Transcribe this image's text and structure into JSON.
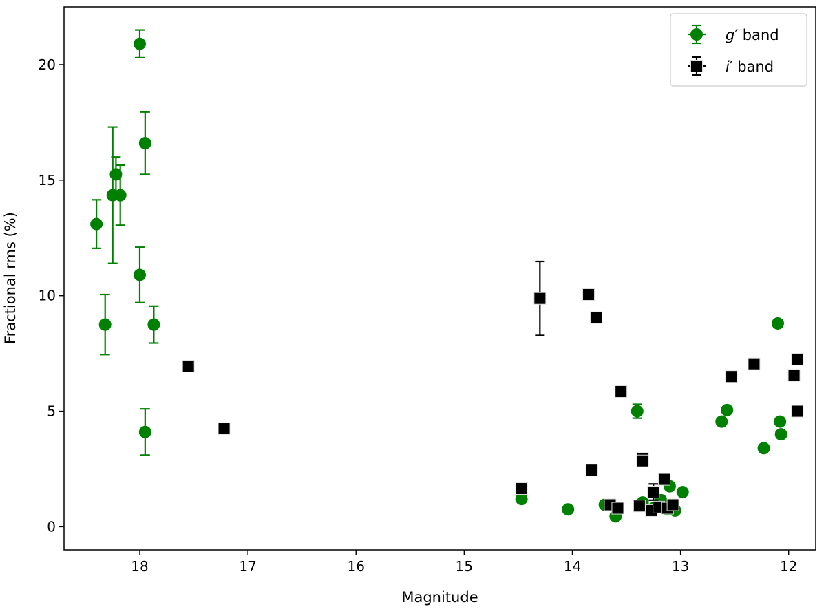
{
  "chart_data": {
    "type": "scatter",
    "title": "",
    "xlabel": "Magnitude",
    "ylabel": "Fractional rms (%)",
    "x_inverted": true,
    "xlim": [
      18.7,
      11.75
    ],
    "ylim": [
      -1.0,
      22.5
    ],
    "xticks": [
      18,
      17,
      16,
      15,
      14,
      13,
      12
    ],
    "yticks": [
      0,
      5,
      10,
      15,
      20
    ],
    "grid": false,
    "legend_position": "top-right",
    "legend": [
      {
        "prefix": "g",
        "suffix": "′ band"
      },
      {
        "prefix": "i",
        "suffix": "′ band"
      }
    ],
    "series": [
      {
        "name": "g′ band",
        "marker": "circle",
        "color": "#008000",
        "points": [
          {
            "x": 18.4,
            "y": 13.1,
            "yerr": 1.05
          },
          {
            "x": 18.32,
            "y": 8.75,
            "yerr": 1.3
          },
          {
            "x": 18.25,
            "y": 14.35,
            "yerr": 2.95
          },
          {
            "x": 18.22,
            "y": 15.25,
            "yerr": 0.75
          },
          {
            "x": 18.18,
            "y": 14.35,
            "yerr": 1.3
          },
          {
            "x": 18.0,
            "y": 20.9,
            "yerr": 0.6
          },
          {
            "x": 18.0,
            "y": 10.9,
            "yerr": 1.2
          },
          {
            "x": 17.95,
            "y": 16.6,
            "yerr": 1.35
          },
          {
            "x": 17.95,
            "y": 4.1,
            "yerr": 1.0
          },
          {
            "x": 17.87,
            "y": 8.75,
            "yerr": 0.8
          },
          {
            "x": 14.47,
            "y": 1.2,
            "yerr": 0
          },
          {
            "x": 14.04,
            "y": 0.75,
            "yerr": 0
          },
          {
            "x": 13.7,
            "y": 0.95,
            "yerr": 0
          },
          {
            "x": 13.6,
            "y": 0.45,
            "yerr": 0
          },
          {
            "x": 13.4,
            "y": 5.0,
            "yerr": 0.3
          },
          {
            "x": 13.35,
            "y": 1.05,
            "yerr": 0
          },
          {
            "x": 13.25,
            "y": 0.8,
            "yerr": 0
          },
          {
            "x": 13.18,
            "y": 1.15,
            "yerr": 0
          },
          {
            "x": 13.12,
            "y": 0.75,
            "yerr": 0
          },
          {
            "x": 13.1,
            "y": 1.75,
            "yerr": 0
          },
          {
            "x": 13.05,
            "y": 0.7,
            "yerr": 0
          },
          {
            "x": 12.98,
            "y": 1.5,
            "yerr": 0
          },
          {
            "x": 12.62,
            "y": 4.55,
            "yerr": 0
          },
          {
            "x": 12.57,
            "y": 5.05,
            "yerr": 0
          },
          {
            "x": 12.23,
            "y": 3.4,
            "yerr": 0
          },
          {
            "x": 12.1,
            "y": 8.8,
            "yerr": 0
          },
          {
            "x": 12.08,
            "y": 4.55,
            "yerr": 0
          },
          {
            "x": 12.07,
            "y": 4.0,
            "yerr": 0
          }
        ]
      },
      {
        "name": "i′ band",
        "marker": "square",
        "color": "#000000",
        "points": [
          {
            "x": 17.55,
            "y": 6.95,
            "yerr": 0
          },
          {
            "x": 17.22,
            "y": 4.25,
            "yerr": 0
          },
          {
            "x": 14.47,
            "y": 1.65,
            "yerr": 0
          },
          {
            "x": 14.3,
            "y": 9.88,
            "yerr": 1.6
          },
          {
            "x": 13.85,
            "y": 10.05,
            "yerr": 0
          },
          {
            "x": 13.82,
            "y": 2.45,
            "yerr": 0
          },
          {
            "x": 13.78,
            "y": 9.05,
            "yerr": 0
          },
          {
            "x": 13.65,
            "y": 0.95,
            "yerr": 0
          },
          {
            "x": 13.58,
            "y": 0.8,
            "yerr": 0
          },
          {
            "x": 13.55,
            "y": 5.85,
            "yerr": 0
          },
          {
            "x": 13.38,
            "y": 0.9,
            "yerr": 0
          },
          {
            "x": 13.35,
            "y": 2.95,
            "yerr": 0
          },
          {
            "x": 13.35,
            "y": 2.85,
            "yerr": 0
          },
          {
            "x": 13.27,
            "y": 0.7,
            "yerr": 0
          },
          {
            "x": 13.25,
            "y": 1.5,
            "yerr": 0.35
          },
          {
            "x": 13.2,
            "y": 0.85,
            "yerr": 0
          },
          {
            "x": 13.15,
            "y": 2.05,
            "yerr": 0
          },
          {
            "x": 13.12,
            "y": 0.8,
            "yerr": 0
          },
          {
            "x": 13.07,
            "y": 0.95,
            "yerr": 0
          },
          {
            "x": 12.53,
            "y": 6.5,
            "yerr": 0
          },
          {
            "x": 12.32,
            "y": 7.05,
            "yerr": 0
          },
          {
            "x": 11.95,
            "y": 6.55,
            "yerr": 0
          },
          {
            "x": 11.92,
            "y": 7.25,
            "yerr": 0
          },
          {
            "x": 11.92,
            "y": 5.0,
            "yerr": 0
          }
        ]
      }
    ]
  }
}
